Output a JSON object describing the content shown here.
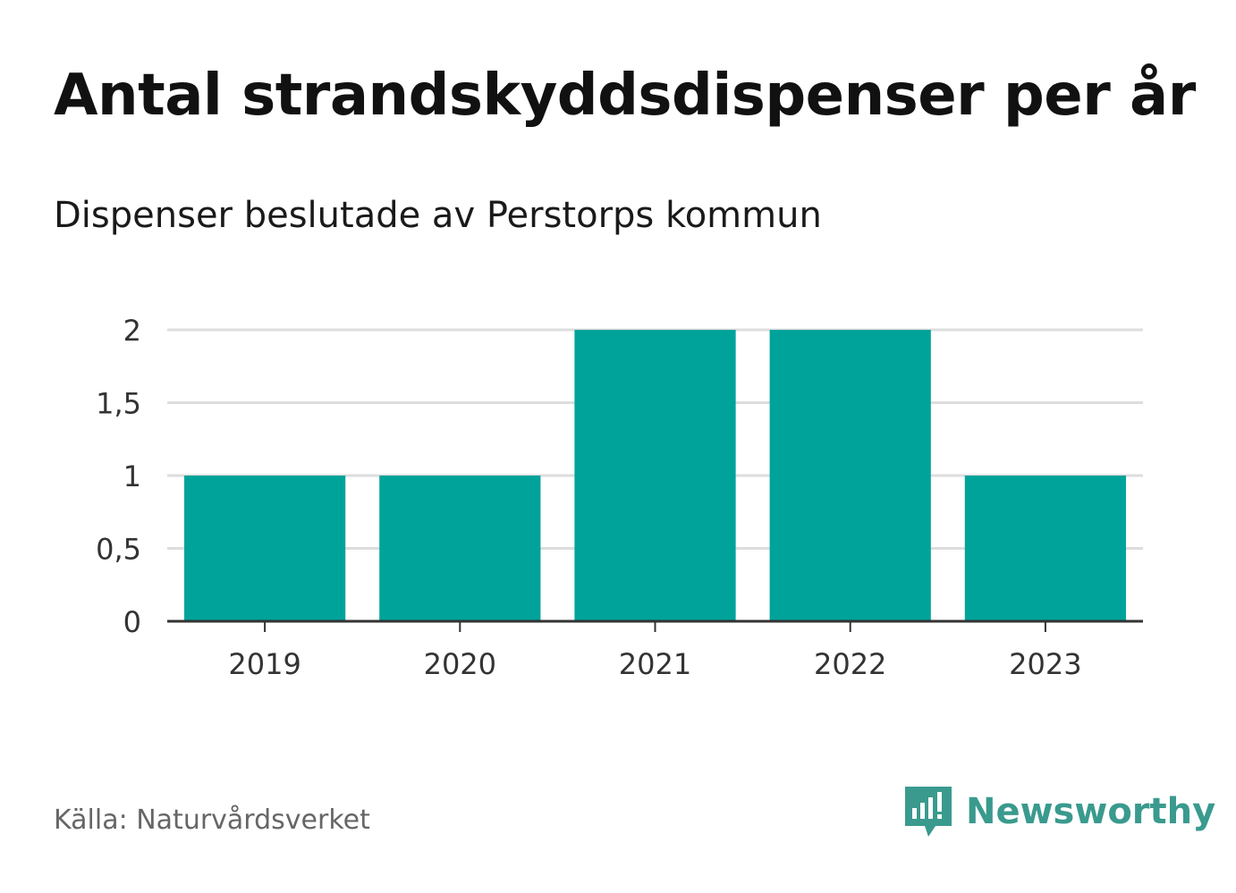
{
  "title": "Antal strandskyddsdispenser per år",
  "subtitle": "Dispenser beslutade av Perstorps kommun",
  "source": "Källa: Naturvårdsverket",
  "brand": {
    "name": "Newsworthy",
    "icon": "newsworthy-logo-icon",
    "color": "#3a9a8e"
  },
  "colors": {
    "bar": "#00a39a",
    "grid": "#dddddd",
    "axis": "#333333",
    "tick_text": "#333333"
  },
  "chart_data": {
    "type": "bar",
    "title": "Antal strandskyddsdispenser per år",
    "subtitle": "Dispenser beslutade av Perstorps kommun",
    "xlabel": "",
    "ylabel": "",
    "categories": [
      "2019",
      "2020",
      "2021",
      "2022",
      "2023"
    ],
    "values": [
      1,
      1,
      2,
      2,
      1
    ],
    "ylim": [
      0,
      2
    ],
    "yticks": [
      0,
      0.5,
      1,
      1.5,
      2
    ],
    "ytick_labels": [
      "0",
      "0,5",
      "1",
      "1,5",
      "2"
    ],
    "grid": true,
    "legend": "none"
  }
}
